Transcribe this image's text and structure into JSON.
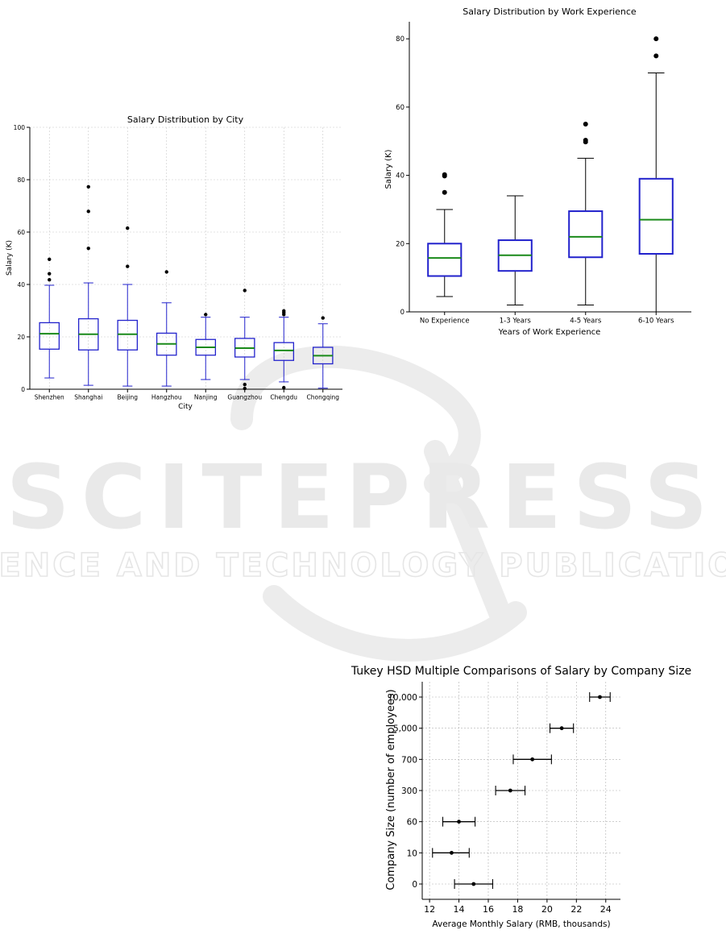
{
  "watermark": {
    "line1": "SCITEPRESS",
    "line2": "SCIENCE AND TECHNOLOGY PUBLICATIONS",
    "color": "#e9e9e9"
  },
  "chart_data": [
    {
      "type": "box",
      "title": "Salary Distribution by City",
      "xlabel": "City",
      "ylabel": "Salary (K)",
      "ylim": [
        0,
        100
      ],
      "yticks": [
        0,
        20,
        40,
        60,
        80,
        100
      ],
      "grid": true,
      "box_color": "#2222cc",
      "median_color": "#1a8a1a",
      "categories": [
        "Shenzhen",
        "Shanghai",
        "Beijing",
        "Hangzhou",
        "Nanjing",
        "Guangzhou",
        "Chengdu",
        "Chongqing"
      ],
      "boxes": [
        {
          "whislo": 4.3,
          "q1": 15.3,
          "med": 21.2,
          "q3": 25.4,
          "whishi": 39.7,
          "fliers": [
            41.8,
            44.1,
            49.6
          ]
        },
        {
          "whislo": 1.5,
          "q1": 15.0,
          "med": 21.0,
          "q3": 26.9,
          "whishi": 40.6,
          "fliers": [
            53.8,
            67.9,
            77.3
          ]
        },
        {
          "whislo": 1.2,
          "q1": 15.0,
          "med": 21.0,
          "q3": 26.3,
          "whishi": 40.0,
          "fliers": [
            46.9,
            61.5
          ]
        },
        {
          "whislo": 1.2,
          "q1": 13.0,
          "med": 17.3,
          "q3": 21.4,
          "whishi": 33.0,
          "fliers": [
            44.8
          ]
        },
        {
          "whislo": 3.7,
          "q1": 13.0,
          "med": 16.0,
          "q3": 19.0,
          "whishi": 27.5,
          "fliers": [
            28.5
          ]
        },
        {
          "whislo": 3.7,
          "q1": 12.3,
          "med": 15.7,
          "q3": 19.4,
          "whishi": 27.5,
          "fliers": [
            0.3,
            1.8,
            37.7
          ]
        },
        {
          "whislo": 2.8,
          "q1": 11.0,
          "med": 14.8,
          "q3": 17.8,
          "whishi": 27.5,
          "fliers": [
            0.6,
            28.5,
            29.2,
            29.9
          ]
        },
        {
          "whislo": 0.4,
          "q1": 9.7,
          "med": 12.8,
          "q3": 16.0,
          "whishi": 25.0,
          "fliers": [
            27.2
          ]
        }
      ]
    },
    {
      "type": "box",
      "title": "Salary Distribution by Work Experience",
      "xlabel": "Years of Work Experience",
      "ylabel": "Salary (K)",
      "ylim": [
        0,
        85
      ],
      "yticks": [
        0,
        20,
        40,
        60,
        80
      ],
      "grid": false,
      "box_color": "#2222cc",
      "median_color": "#1a8a1a",
      "categories": [
        "No Experience",
        "1-3 Years",
        "4-5 Years",
        "6-10 Years"
      ],
      "boxes": [
        {
          "whislo": 4.5,
          "q1": 10.5,
          "med": 15.8,
          "q3": 20.0,
          "whishi": 30.0,
          "fliers": [
            35.0,
            39.8,
            40.2
          ]
        },
        {
          "whislo": 2.0,
          "q1": 12.0,
          "med": 16.6,
          "q3": 21.0,
          "whishi": 34.0,
          "fliers": []
        },
        {
          "whislo": 2.0,
          "q1": 16.0,
          "med": 22.0,
          "q3": 29.5,
          "whishi": 45.0,
          "fliers": [
            49.8,
            50.3,
            55.0
          ]
        },
        {
          "whislo": 0.0,
          "q1": 17.0,
          "med": 27.0,
          "q3": 39.0,
          "whishi": 70.0,
          "fliers": [
            75.0,
            80.0
          ]
        }
      ]
    },
    {
      "type": "errorbar",
      "title": "Tukey HSD Multiple Comparisons of Salary by Company Size",
      "xlabel": "Average Monthly Salary (RMB, thousands)",
      "ylabel": "Company Size (number of employees)",
      "xlim": [
        11.5,
        25
      ],
      "xticks": [
        12,
        14,
        16,
        18,
        20,
        22,
        24
      ],
      "grid": true,
      "categories": [
        "0",
        "10",
        "60",
        "300",
        "700",
        "5,000",
        "10,000"
      ],
      "means": [
        15.0,
        13.5,
        14.0,
        17.5,
        19.0,
        21.0,
        23.6
      ],
      "lower": [
        13.7,
        12.2,
        12.9,
        16.5,
        17.7,
        20.2,
        22.9
      ],
      "upper": [
        16.3,
        14.7,
        15.1,
        18.5,
        20.3,
        21.8,
        24.3
      ]
    }
  ]
}
